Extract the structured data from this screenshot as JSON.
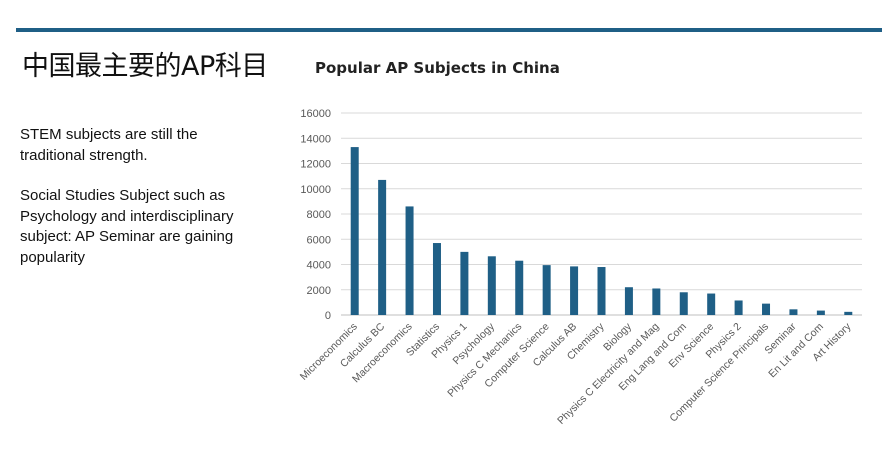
{
  "slide": {
    "title": "中国最主要的AP科目",
    "paragraphs": [
      "STEM subjects are still the traditional strength.",
      "Social Studies Subject such as Psychology and interdisciplinary subject: AP Seminar are gaining popularity"
    ]
  },
  "colors": {
    "bar": "#1f5f86",
    "accent_bar": "#1f5f86",
    "grid": "#d9d9d9"
  },
  "chart_data": {
    "type": "bar",
    "title": "Popular AP Subjects in China",
    "xlabel": "",
    "ylabel": "",
    "ylim": [
      0,
      16000
    ],
    "yticks": [
      0,
      2000,
      4000,
      6000,
      8000,
      10000,
      12000,
      14000,
      16000
    ],
    "grid": true,
    "legend": "none",
    "categories": [
      "Microeconomics",
      "Calculus BC",
      "Macroeconomics",
      "Statistics",
      "Physics 1",
      "Psychology",
      "Physics C Mechanics",
      "Computer Science",
      "Calculus AB",
      "Chemistry",
      "Biology",
      "Physics C Electricity and Mag",
      "Eng Lang and Com",
      "Env Science",
      "Physics 2",
      "Computer Science Principals",
      "Seminar",
      "En Lit and Com",
      "Art History"
    ],
    "values": [
      13300,
      10700,
      8600,
      5700,
      5000,
      4650,
      4300,
      3950,
      3850,
      3800,
      2200,
      2100,
      1800,
      1700,
      1150,
      900,
      450,
      350,
      250
    ]
  }
}
